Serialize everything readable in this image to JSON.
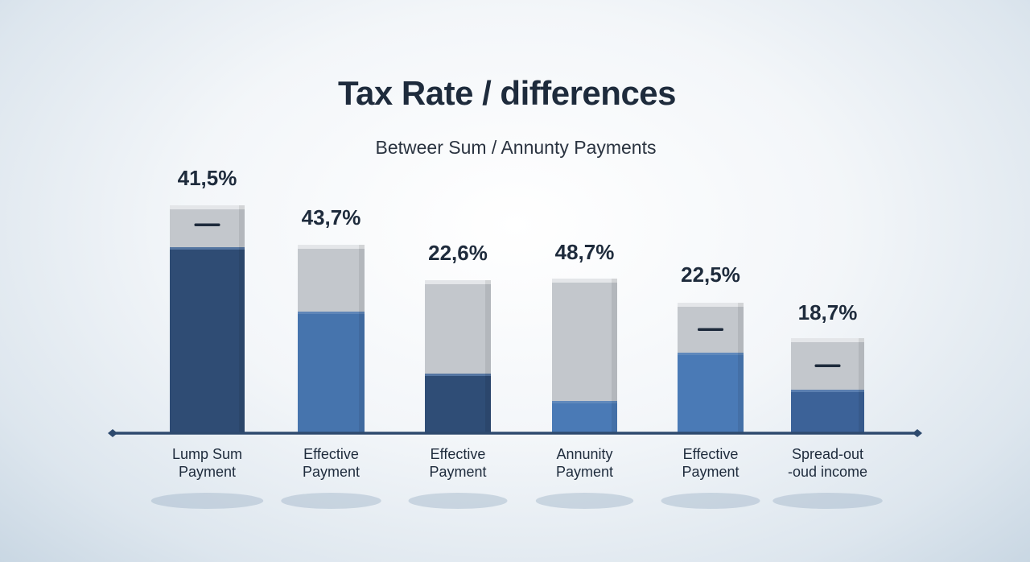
{
  "chart_data": {
    "type": "bar",
    "title": "Tax Rate / differences",
    "subtitle": "Betweer Sum / Annunty Payments",
    "categories": [
      [
        "Lump Sum",
        "Payment"
      ],
      [
        "Effective",
        "Payment"
      ],
      [
        "Effective",
        "Payment"
      ],
      [
        "Annunity",
        "Payment"
      ],
      [
        "Effective",
        "Payment"
      ],
      [
        "Spread-out",
        "-oud income"
      ]
    ],
    "values": [
      41.5,
      43.7,
      22.6,
      48.7,
      22.5,
      18.7
    ],
    "value_labels": [
      "41,5%",
      "43,7%",
      "22,6%",
      "48,7%",
      "22,5%",
      "18,7%"
    ],
    "segment_colors": {
      "top": "#c3c7cc",
      "lower": [
        "#2f4c74",
        "#4674ad",
        "#2f4d76",
        "#4a7ab6",
        "#4a7ab6",
        "#3c6298"
      ]
    },
    "dash_marker_on": [
      true,
      false,
      false,
      false,
      true,
      true
    ],
    "axis_color": "#2e4a6e",
    "grid": false,
    "legend": "none"
  }
}
